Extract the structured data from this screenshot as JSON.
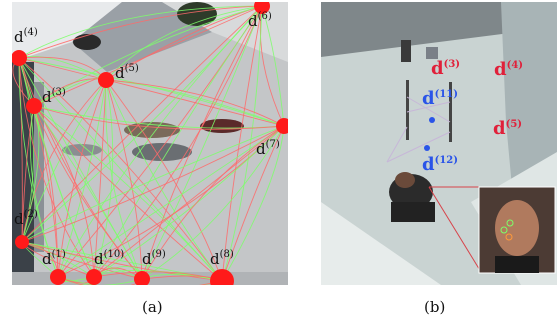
{
  "panel_a": {
    "caption": "(a)",
    "nodes": [
      {
        "id": "n4",
        "label": "d",
        "sup": "(4)"
      },
      {
        "id": "n6",
        "label": "d",
        "sup": "(6)"
      },
      {
        "id": "n5",
        "label": "d",
        "sup": "(5)"
      },
      {
        "id": "n3",
        "label": "d",
        "sup": "(3)"
      },
      {
        "id": "n7",
        "label": "d",
        "sup": "(7)"
      },
      {
        "id": "n2",
        "label": "d",
        "sup": "(2)"
      },
      {
        "id": "n1",
        "label": "d",
        "sup": "(1)"
      },
      {
        "id": "n10",
        "label": "d",
        "sup": "(10)"
      },
      {
        "id": "n9",
        "label": "d",
        "sup": "(9)"
      },
      {
        "id": "n8",
        "label": "d",
        "sup": "(8)"
      }
    ],
    "colors": {
      "node": "#ff1a1a",
      "trajectory_green": "#7dff6a",
      "trajectory_red": "#ff6a6a"
    }
  },
  "panel_b": {
    "caption": "(b)",
    "labels": [
      {
        "id": "d3",
        "label": "d",
        "sup": "(3)",
        "color": "#e0203a"
      },
      {
        "id": "d4",
        "label": "d",
        "sup": "(4)",
        "color": "#e0203a"
      },
      {
        "id": "d5",
        "label": "d",
        "sup": "(5)",
        "color": "#e0203a"
      },
      {
        "id": "d11",
        "label": "d",
        "sup": "(11)",
        "color": "#2a54e8"
      },
      {
        "id": "d12",
        "label": "d",
        "sup": "(12)",
        "color": "#2a54e8"
      }
    ]
  }
}
